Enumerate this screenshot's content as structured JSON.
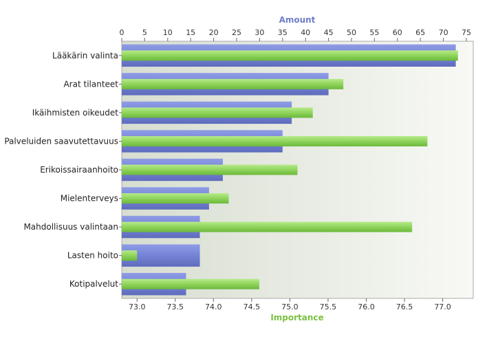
{
  "chart_data": {
    "type": "bar",
    "orientation": "horizontal",
    "categories": [
      "Lääkärin valinta",
      "Arat tilanteet",
      "Ikäihmisten oikeudet",
      "Palveluiden saavutettavuus",
      "Erikoissairaanhoito",
      "Mielenterveys",
      "Mahdollisuus valintaan",
      "Lasten hoito",
      "Kotipalvelut"
    ],
    "series": [
      {
        "name": "Amount",
        "axis": "top",
        "color": "#6f7fd0",
        "values": [
          72.7,
          45,
          37,
          35,
          22,
          19,
          17,
          17,
          14
        ]
      },
      {
        "name": "Importance",
        "axis": "bottom",
        "color": "#8ed35a",
        "values": [
          77.2,
          75.7,
          75.3,
          76.8,
          75.1,
          74.2,
          76.6,
          73.0,
          74.6
        ]
      }
    ],
    "top_axis": {
      "title": "Amount",
      "range": [
        0,
        76.5
      ],
      "ticks": [
        "0",
        "5",
        "10",
        "15",
        "20",
        "25",
        "30",
        "35",
        "40",
        "45",
        "50",
        "55",
        "60",
        "65",
        "70",
        "75"
      ]
    },
    "bottom_axis": {
      "title": "Importance",
      "range": [
        72.8,
        77.4
      ],
      "ticks": [
        "73.0",
        "73.5",
        "74.0",
        "74.5",
        "75.0",
        "75.5",
        "76.0",
        "76.5",
        "77.0"
      ]
    },
    "grid": false,
    "legend": "none",
    "colors": {
      "amount": "#6f7fd0",
      "importance": "#8ed35a",
      "plot_bg_left": "#d9ded2",
      "plot_bg_right": "#f7f8f4"
    }
  }
}
